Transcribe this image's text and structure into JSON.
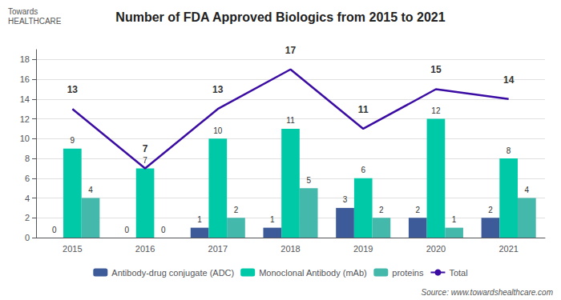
{
  "chart_data": {
    "type": "bar",
    "title": "Number of FDA Approved Biologics from 2015 to 2021",
    "annotations": [
      "Towards\nHEALTHCARE",
      "Source: www.towardshealthcare.com"
    ],
    "categories": [
      "2015",
      "2016",
      "2017",
      "2018",
      "2019",
      "2020",
      "2021"
    ],
    "series": [
      {
        "name": "Antibody-drug conjugate (ADC)",
        "color": "#3d5a99",
        "values": [
          0,
          0,
          1,
          1,
          3,
          2,
          2
        ]
      },
      {
        "name": "Monoclonal Antibody (mAb)",
        "color": "#00c9a7",
        "values": [
          9,
          7,
          10,
          11,
          6,
          12,
          8
        ]
      },
      {
        "name": "proteins",
        "color": "#45b8ac",
        "values": [
          4,
          0,
          2,
          5,
          2,
          1,
          4
        ]
      },
      {
        "name": "Total",
        "type": "line",
        "color": "#3a0ca3",
        "values": [
          13,
          7,
          13,
          17,
          11,
          15,
          14
        ]
      }
    ],
    "ylim": [
      0,
      19
    ],
    "yticks": [
      0,
      2,
      4,
      6,
      8,
      10,
      12,
      14,
      16,
      18
    ],
    "grid": true,
    "legend": "bottom",
    "data_labels": true
  }
}
